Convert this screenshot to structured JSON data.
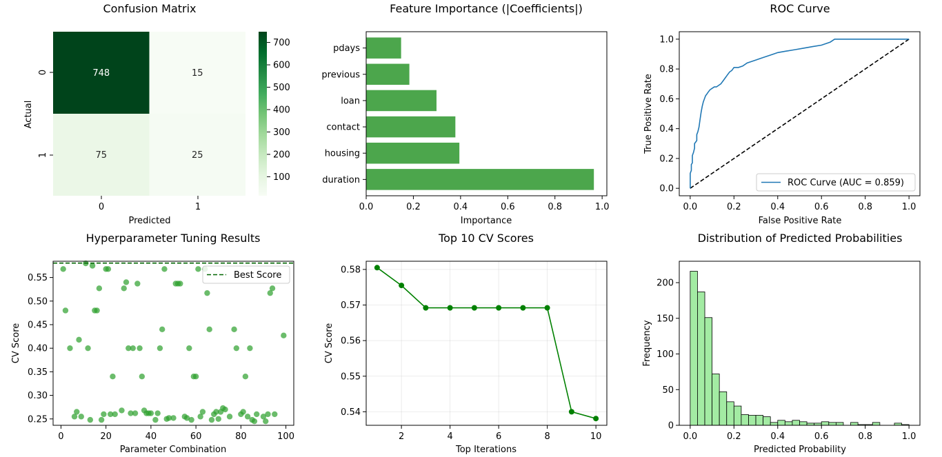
{
  "chart_data": [
    {
      "type": "heatmap",
      "title": "Confusion Matrix",
      "xlabel": "Predicted",
      "ylabel": "Actual",
      "x_categories": [
        "0",
        "1"
      ],
      "y_categories": [
        "0",
        "1"
      ],
      "values": [
        [
          748,
          15
        ],
        [
          75,
          25
        ]
      ],
      "colormap": "Greens",
      "colorbar_ticks": [
        100,
        200,
        300,
        400,
        500,
        600,
        700
      ],
      "colorbar_range": [
        15,
        748
      ]
    },
    {
      "type": "bar",
      "orientation": "horizontal",
      "title": "Feature Importance (|Coefficients|)",
      "xlabel": "Importance",
      "ylabel": "",
      "categories": [
        "duration",
        "housing",
        "contact",
        "loan",
        "previous",
        "pdays"
      ],
      "values": [
        0.965,
        0.395,
        0.378,
        0.298,
        0.183,
        0.148
      ],
      "xlim": [
        0,
        1.02
      ],
      "xticks": [
        "0.0",
        "0.2",
        "0.4",
        "0.6",
        "0.8",
        "1.0"
      ],
      "color": "#4ca64c"
    },
    {
      "type": "line",
      "title": "ROC Curve",
      "xlabel": "False Positive Rate",
      "ylabel": "True Positive Rate",
      "xlim": [
        -0.05,
        1.05
      ],
      "ylim": [
        -0.05,
        1.05
      ],
      "xticks": [
        "0.0",
        "0.2",
        "0.4",
        "0.6",
        "0.8",
        "1.0"
      ],
      "yticks": [
        "0.0",
        "0.2",
        "0.4",
        "0.6",
        "0.8",
        "1.0"
      ],
      "legend_position": "lower right",
      "series": [
        {
          "name": "ROC Curve (AUC = 0.859)",
          "color": "#1f77b4",
          "x": [
            0,
            0,
            0.005,
            0.005,
            0.01,
            0.01,
            0.015,
            0.02,
            0.02,
            0.025,
            0.03,
            0.03,
            0.035,
            0.04,
            0.045,
            0.05,
            0.055,
            0.06,
            0.065,
            0.07,
            0.075,
            0.08,
            0.09,
            0.1,
            0.11,
            0.12,
            0.13,
            0.14,
            0.15,
            0.16,
            0.17,
            0.18,
            0.19,
            0.2,
            0.22,
            0.24,
            0.26,
            0.28,
            0.3,
            0.32,
            0.34,
            0.36,
            0.38,
            0.4,
            0.44,
            0.48,
            0.52,
            0.56,
            0.6,
            0.64,
            0.66,
            0.7,
            0.8,
            0.9,
            1.0
          ],
          "y": [
            0,
            0.1,
            0.12,
            0.16,
            0.17,
            0.22,
            0.24,
            0.27,
            0.3,
            0.31,
            0.32,
            0.36,
            0.38,
            0.41,
            0.46,
            0.51,
            0.55,
            0.58,
            0.6,
            0.62,
            0.63,
            0.64,
            0.66,
            0.67,
            0.68,
            0.68,
            0.69,
            0.7,
            0.72,
            0.74,
            0.76,
            0.78,
            0.79,
            0.81,
            0.81,
            0.82,
            0.84,
            0.85,
            0.86,
            0.87,
            0.88,
            0.89,
            0.9,
            0.91,
            0.92,
            0.93,
            0.94,
            0.95,
            0.96,
            0.98,
            1.0,
            1.0,
            1.0,
            1.0,
            1.0
          ]
        },
        {
          "name": "",
          "color": "#000000",
          "dashed": true,
          "x": [
            0,
            1
          ],
          "y": [
            0,
            1
          ]
        }
      ]
    },
    {
      "type": "scatter",
      "title": "Hyperparameter Tuning Results",
      "xlabel": "Parameter Combination",
      "ylabel": "CV Score",
      "xlim": [
        -3.5,
        103.5
      ],
      "ylim": [
        0.2365,
        0.5845
      ],
      "xticks": [
        "0",
        "20",
        "40",
        "60",
        "80",
        "100"
      ],
      "yticks": [
        "0.25",
        "0.30",
        "0.35",
        "0.40",
        "0.45",
        "0.50",
        "0.55"
      ],
      "color": "#2ca02c",
      "best_score": 0.5805,
      "best_score_label": "Best Score",
      "legend_position": "upper right",
      "x": [
        1,
        2,
        4,
        6,
        7,
        8,
        9,
        11,
        12,
        13,
        14,
        15,
        16,
        17,
        18,
        19,
        20,
        21,
        22,
        23,
        24,
        27,
        28,
        29,
        30,
        31,
        32,
        33,
        34,
        35,
        36,
        37,
        38,
        39,
        40,
        42,
        43,
        44,
        45,
        46,
        47,
        48,
        50,
        51,
        52,
        53,
        55,
        56,
        57,
        58,
        59,
        60,
        61,
        62,
        63,
        64,
        65,
        66,
        67,
        68,
        69,
        70,
        71,
        72,
        73,
        75,
        77,
        78,
        80,
        81,
        82,
        83,
        84,
        85,
        86,
        87,
        90,
        91,
        92,
        93,
        94,
        95,
        99
      ],
      "y": [
        0.568,
        0.48,
        0.4,
        0.255,
        0.265,
        0.418,
        0.255,
        0.58,
        0.4,
        0.248,
        0.575,
        0.48,
        0.48,
        0.527,
        0.248,
        0.26,
        0.568,
        0.568,
        0.26,
        0.34,
        0.26,
        0.268,
        0.527,
        0.54,
        0.4,
        0.262,
        0.4,
        0.262,
        0.537,
        0.4,
        0.34,
        0.268,
        0.262,
        0.262,
        0.262,
        0.248,
        0.262,
        0.4,
        0.44,
        0.568,
        0.25,
        0.252,
        0.252,
        0.537,
        0.537,
        0.537,
        0.255,
        0.252,
        0.4,
        0.248,
        0.34,
        0.34,
        0.568,
        0.255,
        0.265,
        0.568,
        0.517,
        0.44,
        0.248,
        0.26,
        0.265,
        0.25,
        0.265,
        0.273,
        0.27,
        0.255,
        0.44,
        0.4,
        0.26,
        0.265,
        0.34,
        0.255,
        0.4,
        0.248,
        0.245,
        0.26,
        0.255,
        0.245,
        0.26,
        0.517,
        0.527,
        0.26,
        0.427
      ]
    },
    {
      "type": "line",
      "title": "Top 10 CV Scores",
      "xlabel": "Top Iterations",
      "ylabel": "CV Score",
      "xlim": [
        0.55,
        10.45
      ],
      "ylim": [
        0.5362,
        0.5823
      ],
      "xticks": [
        "2",
        "4",
        "6",
        "8",
        "10"
      ],
      "yticks": [
        "0.54",
        "0.55",
        "0.56",
        "0.57",
        "0.58"
      ],
      "grid": true,
      "color": "#008000",
      "x": [
        1,
        2,
        3,
        4,
        5,
        6,
        7,
        8,
        9,
        10
      ],
      "y": [
        0.5805,
        0.5755,
        0.5692,
        0.5692,
        0.5692,
        0.5692,
        0.5692,
        0.5692,
        0.54,
        0.5381
      ]
    },
    {
      "type": "histogram",
      "title": "Distribution of Predicted Probabilities",
      "xlabel": "Predicted Probability",
      "ylabel": "Frequency",
      "xlim": [
        -0.05,
        1.05
      ],
      "ylim": [
        0,
        230
      ],
      "xticks": [
        "0.0",
        "0.2",
        "0.4",
        "0.6",
        "0.8",
        "1.0"
      ],
      "yticks": [
        "0",
        "50",
        "100",
        "150",
        "200"
      ],
      "color": "#a3eba3",
      "bin_edges": [
        0.0,
        0.0333,
        0.0667,
        0.1,
        0.1333,
        0.1667,
        0.2,
        0.2333,
        0.2667,
        0.3,
        0.3333,
        0.3667,
        0.4,
        0.4333,
        0.4667,
        0.5,
        0.5333,
        0.5667,
        0.6,
        0.6333,
        0.6667,
        0.7,
        0.7333,
        0.7667,
        0.8,
        0.8333,
        0.8667,
        0.9,
        0.9333,
        0.9667,
        1.0
      ],
      "counts": [
        216,
        187,
        151,
        72,
        47,
        33,
        27,
        15,
        14,
        14,
        12,
        4,
        7,
        5,
        7,
        5,
        3,
        3,
        5,
        4,
        4,
        0,
        4,
        1,
        1,
        4,
        0,
        0,
        3,
        1
      ]
    }
  ]
}
